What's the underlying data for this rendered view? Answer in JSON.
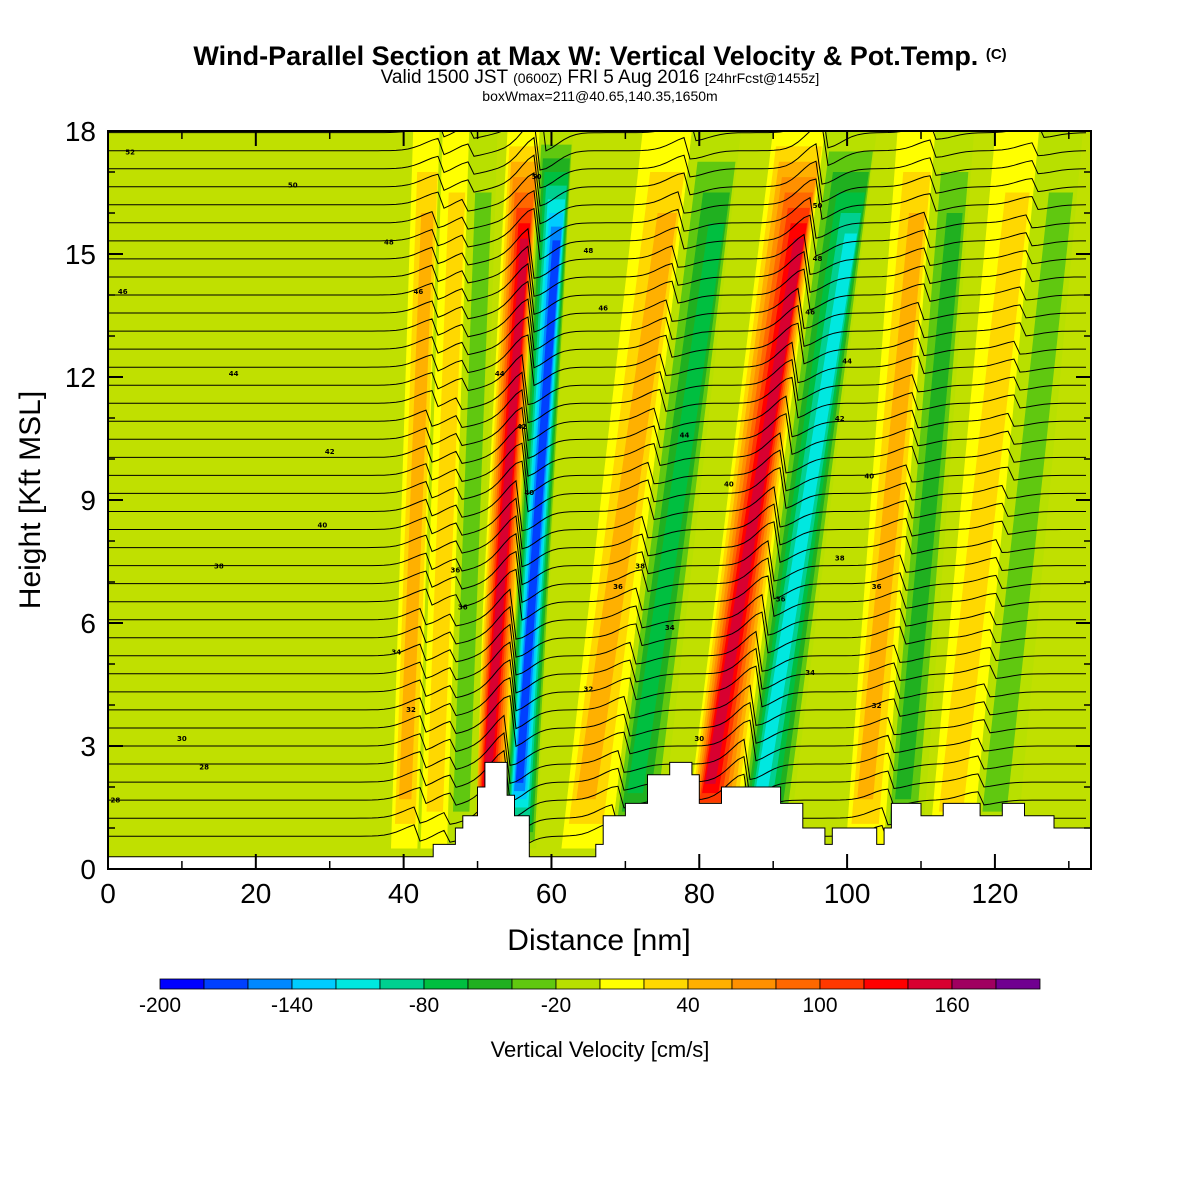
{
  "title": {
    "line1": "Wind-Parallel Section at Max W: Vertical Velocity & Pot.Temp.",
    "line1_mark": "(C)",
    "line2_a": "Valid 1500 JST",
    "line2_b": "(0600Z)",
    "line2_c": "FRI 5 Aug 2016",
    "line2_d": "[24hrFcst@1455z]",
    "line3": "boxWmax=211@40.65,140.35,1650m"
  },
  "chart_data": {
    "type": "heatmap",
    "xlabel": "Distance [nm]",
    "ylabel": "Height [Kft MSL]",
    "xlim": [
      0,
      133
    ],
    "ylim": [
      0,
      18
    ],
    "x_ticks": [
      "0",
      "20",
      "40",
      "60",
      "80",
      "100",
      "120"
    ],
    "y_ticks": [
      "0",
      "3",
      "6",
      "9",
      "12",
      "15",
      "18"
    ],
    "x_tick_values": [
      0,
      20,
      40,
      60,
      80,
      100,
      120
    ],
    "y_tick_values": [
      0,
      3,
      6,
      9,
      12,
      15,
      18
    ],
    "colorbar": {
      "title": "Vertical Velocity [cm/s]",
      "range": [
        -200,
        200
      ],
      "step": 20,
      "tick_labels": [
        "-200",
        "-140",
        "-80",
        "-20",
        "40",
        "100",
        "160"
      ],
      "tick_values": [
        -200,
        -140,
        -80,
        -20,
        40,
        100,
        160
      ],
      "colors": [
        "#0000ff",
        "#0040ff",
        "#0088ff",
        "#00ccff",
        "#00e8e0",
        "#00d090",
        "#00bf40",
        "#20b020",
        "#60c810",
        "#b8e000",
        "#ffff00",
        "#ffd800",
        "#ffb000",
        "#ff9000",
        "#ff6800",
        "#ff3800",
        "#ff0000",
        "#d80030",
        "#a00060",
        "#700090"
      ]
    },
    "background_value": 0,
    "background_color": "#c0e000",
    "max_w_cm_s": 211,
    "wave_bands": [
      {
        "x_bottom": 53.5,
        "x_top": 58.5,
        "w_min": -180,
        "w_max": 170
      },
      {
        "x_bottom": 42,
        "x_top": 45,
        "w_min": -60,
        "w_max": 60
      },
      {
        "x_bottom": 46,
        "x_top": 49,
        "w_min": -40,
        "w_max": 50
      },
      {
        "x_bottom": 68,
        "x_top": 79,
        "w_min": -80,
        "w_max": 70
      },
      {
        "x_bottom": 85,
        "x_top": 97,
        "w_min": -120,
        "w_max": 160
      },
      {
        "x_bottom": 105,
        "x_top": 112,
        "w_min": -60,
        "w_max": 60
      },
      {
        "x_bottom": 117,
        "x_top": 126,
        "w_min": -40,
        "w_max": 50
      }
    ],
    "terrain": [
      [
        0,
        0.3
      ],
      [
        44,
        0.3
      ],
      [
        44,
        0.6
      ],
      [
        47,
        0.6
      ],
      [
        47,
        1.0
      ],
      [
        48,
        1.0
      ],
      [
        48,
        1.3
      ],
      [
        50,
        1.3
      ],
      [
        50,
        2.0
      ],
      [
        51,
        2.0
      ],
      [
        51,
        2.6
      ],
      [
        54,
        2.6
      ],
      [
        54,
        1.8
      ],
      [
        55,
        1.8
      ],
      [
        55,
        1.3
      ],
      [
        57,
        1.3
      ],
      [
        57,
        0.3
      ],
      [
        66,
        0.3
      ],
      [
        66,
        0.6
      ],
      [
        67,
        0.6
      ],
      [
        67,
        1.3
      ],
      [
        70,
        1.3
      ],
      [
        70,
        1.6
      ],
      [
        73,
        1.6
      ],
      [
        73,
        2.3
      ],
      [
        76,
        2.3
      ],
      [
        76,
        2.6
      ],
      [
        79,
        2.6
      ],
      [
        79,
        2.3
      ],
      [
        80,
        2.3
      ],
      [
        80,
        1.6
      ],
      [
        83,
        1.6
      ],
      [
        83,
        2.0
      ],
      [
        91,
        2.0
      ],
      [
        91,
        1.6
      ],
      [
        94,
        1.6
      ],
      [
        94,
        1.0
      ],
      [
        97,
        1.0
      ],
      [
        97,
        0.6
      ],
      [
        98,
        0.6
      ],
      [
        98,
        1.0
      ],
      [
        104,
        1.0
      ],
      [
        104,
        0.6
      ],
      [
        105,
        0.6
      ],
      [
        105,
        1.0
      ],
      [
        106,
        1.0
      ],
      [
        106,
        1.6
      ],
      [
        110,
        1.6
      ],
      [
        110,
        1.3
      ],
      [
        113,
        1.3
      ],
      [
        113,
        1.6
      ],
      [
        118,
        1.6
      ],
      [
        118,
        1.3
      ],
      [
        121,
        1.3
      ],
      [
        121,
        1.6
      ],
      [
        124,
        1.6
      ],
      [
        124,
        1.3
      ],
      [
        128,
        1.3
      ],
      [
        128,
        1.0
      ],
      [
        133,
        1.0
      ]
    ],
    "theta_contour_labels": [
      {
        "x": 3,
        "y": 17.5,
        "label": "52"
      },
      {
        "x": 25,
        "y": 16.7,
        "label": "50"
      },
      {
        "x": 38,
        "y": 15.3,
        "label": "48"
      },
      {
        "x": 2,
        "y": 14.1,
        "label": "46"
      },
      {
        "x": 42,
        "y": 14.1,
        "label": "46"
      },
      {
        "x": 17,
        "y": 12.1,
        "label": "44"
      },
      {
        "x": 30,
        "y": 10.2,
        "label": "42"
      },
      {
        "x": 29,
        "y": 8.4,
        "label": "40"
      },
      {
        "x": 15,
        "y": 7.4,
        "label": "38"
      },
      {
        "x": 47,
        "y": 7.3,
        "label": "36"
      },
      {
        "x": 48,
        "y": 6.4,
        "label": "36"
      },
      {
        "x": 39,
        "y": 5.3,
        "label": "34"
      },
      {
        "x": 41,
        "y": 3.9,
        "label": "32"
      },
      {
        "x": 10,
        "y": 3.2,
        "label": "30"
      },
      {
        "x": 13,
        "y": 2.5,
        "label": "28"
      },
      {
        "x": 1,
        "y": 1.7,
        "label": "28"
      },
      {
        "x": 58,
        "y": 16.9,
        "label": "50"
      },
      {
        "x": 65,
        "y": 15.1,
        "label": "48"
      },
      {
        "x": 67,
        "y": 13.7,
        "label": "46"
      },
      {
        "x": 78,
        "y": 10.6,
        "label": "44"
      },
      {
        "x": 53,
        "y": 12.1,
        "label": "44"
      },
      {
        "x": 56,
        "y": 10.8,
        "label": "42"
      },
      {
        "x": 57,
        "y": 9.2,
        "label": "40"
      },
      {
        "x": 72,
        "y": 7.4,
        "label": "38"
      },
      {
        "x": 69,
        "y": 6.9,
        "label": "36"
      },
      {
        "x": 76,
        "y": 5.9,
        "label": "34"
      },
      {
        "x": 65,
        "y": 4.4,
        "label": "32"
      },
      {
        "x": 80,
        "y": 3.2,
        "label": "30"
      },
      {
        "x": 96,
        "y": 16.2,
        "label": "50"
      },
      {
        "x": 96,
        "y": 14.9,
        "label": "48"
      },
      {
        "x": 95,
        "y": 13.6,
        "label": "46"
      },
      {
        "x": 100,
        "y": 12.4,
        "label": "44"
      },
      {
        "x": 99,
        "y": 11.0,
        "label": "42"
      },
      {
        "x": 84,
        "y": 9.4,
        "label": "40"
      },
      {
        "x": 103,
        "y": 9.6,
        "label": "40"
      },
      {
        "x": 99,
        "y": 7.6,
        "label": "38"
      },
      {
        "x": 104,
        "y": 6.9,
        "label": "36"
      },
      {
        "x": 91,
        "y": 6.6,
        "label": "36"
      },
      {
        "x": 95,
        "y": 4.8,
        "label": "34"
      },
      {
        "x": 104,
        "y": 4.0,
        "label": "32"
      }
    ]
  }
}
